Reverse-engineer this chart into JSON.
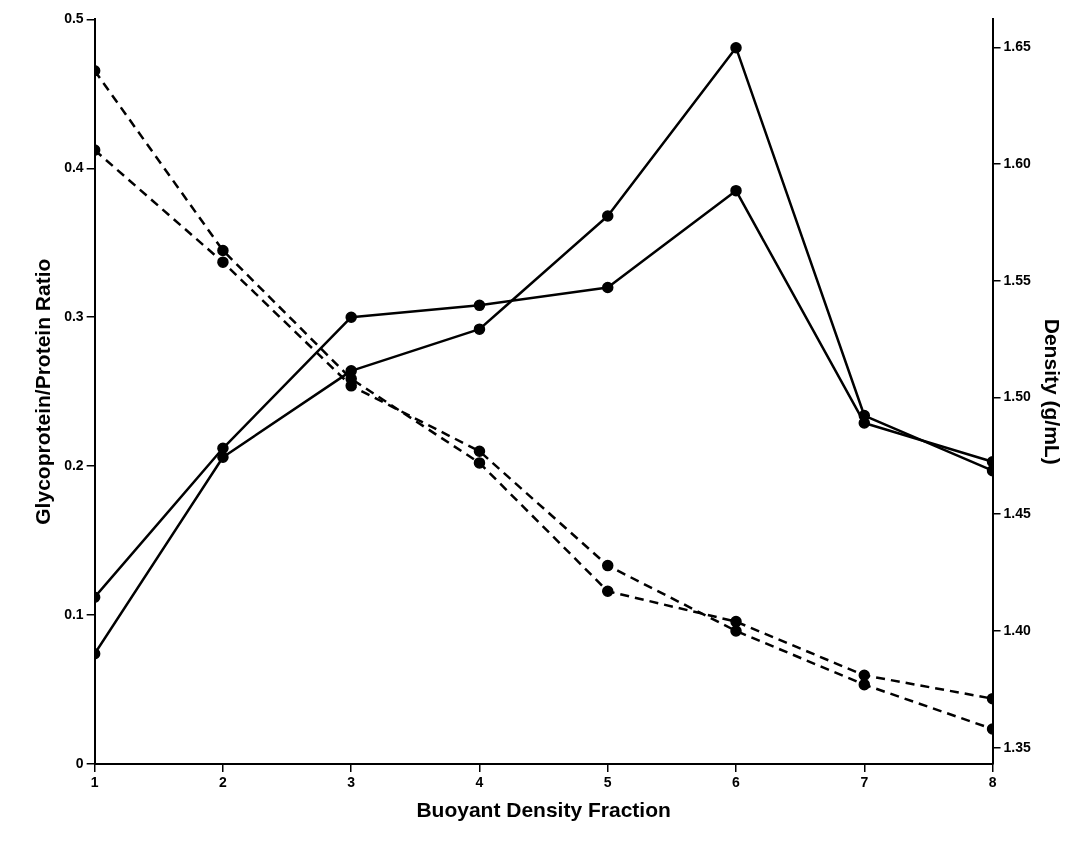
{
  "chart_data": {
    "type": "line",
    "xlabel": "Buoyant Density Fraction",
    "ylabel": "Glycoprotein/Protein Ratio",
    "y2label": "Density (g/mL)",
    "x": [
      1,
      2,
      3,
      4,
      5,
      6,
      7,
      8
    ],
    "series": [
      {
        "color": "#000000",
        "values": [
          0.074,
          0.206,
          0.264,
          0.292,
          0.368,
          0.481,
          0.234,
          0.197
        ],
        "line_style": "solid"
      },
      {
        "color": "#000000",
        "values": [
          0.112,
          0.212,
          0.3,
          0.308,
          0.32,
          0.385,
          0.229,
          0.203
        ],
        "line_style": "solid"
      },
      {
        "color": "#000000",
        "values": [
          1.606,
          1.558,
          1.505,
          1.477,
          1.428,
          1.4,
          1.377,
          1.358
        ],
        "line_style": "dashed",
        "axis": "y2"
      },
      {
        "color": "#000000",
        "values": [
          1.64,
          1.563,
          1.508,
          1.472,
          1.417,
          1.404,
          1.381,
          1.371
        ],
        "line_style": "dashed",
        "axis": "y2"
      }
    ],
    "xlim": [
      1,
      8
    ],
    "xticks": [
      1,
      2,
      3,
      4,
      5,
      6,
      7,
      8
    ],
    "ylim": [
      0,
      0.5
    ],
    "yticks": [
      0,
      0.1,
      0.2,
      0.3,
      0.4,
      0.5
    ],
    "y2lim": [
      1.343,
      1.662
    ],
    "y2ticks": [
      1.35,
      {
        "value": 1.4,
        "label": "1.40"
      },
      1.45,
      {
        "value": 1.5,
        "label": "1.50"
      },
      1.55,
      {
        "value": 1.6,
        "label": "1.60"
      },
      1.65
    ],
    "grid": false,
    "legend": false,
    "marker": "circle"
  }
}
